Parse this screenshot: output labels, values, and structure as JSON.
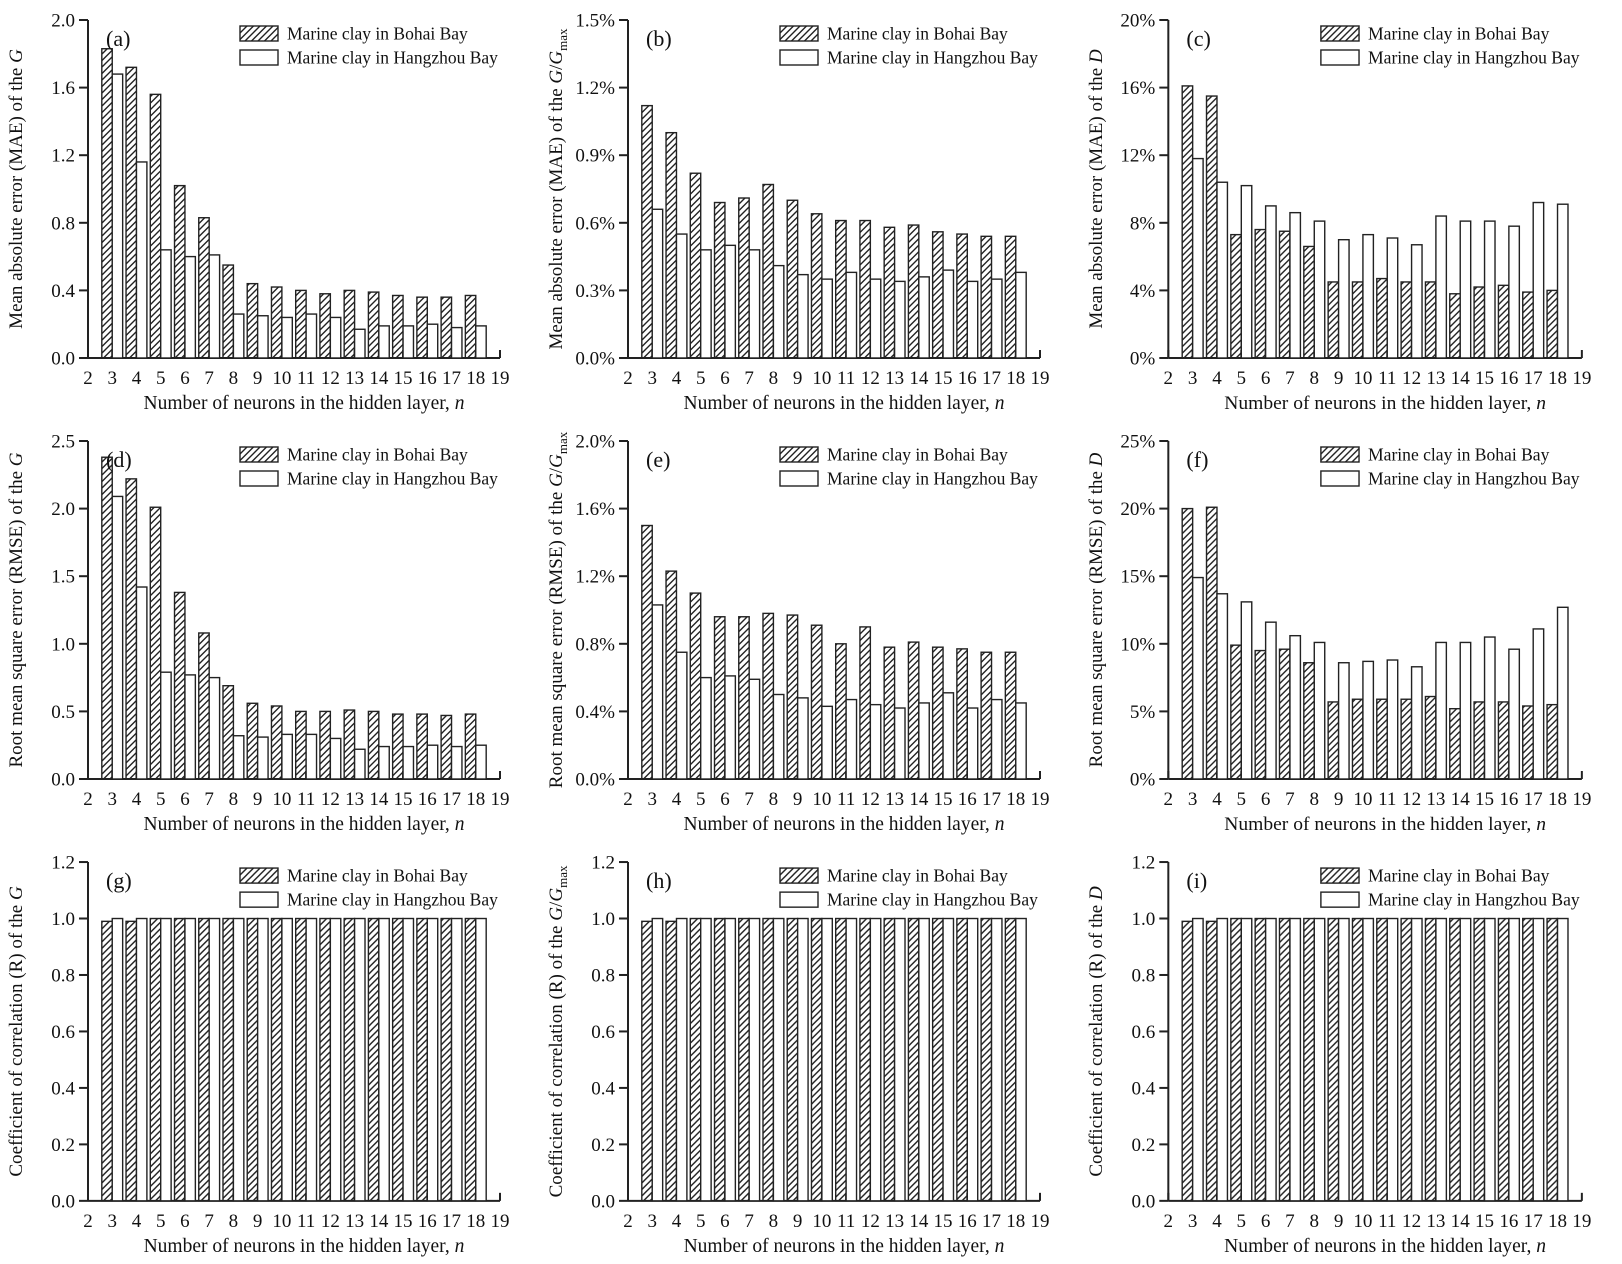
{
  "colors": {
    "ink": "#222222",
    "background": "#ffffff",
    "bar_fill": "#ffffff"
  },
  "legend": {
    "items": [
      {
        "label": "Marine clay in Bohai Bay",
        "swatch": "hatched"
      },
      {
        "label": "Marine clay in Hangzhou Bay",
        "swatch": "plain"
      }
    ]
  },
  "x": {
    "range": [
      2,
      19
    ],
    "ticks": [
      2,
      3,
      4,
      5,
      6,
      7,
      8,
      9,
      10,
      11,
      12,
      13,
      14,
      15,
      16,
      17,
      18,
      19
    ],
    "categories": [
      3,
      4,
      5,
      6,
      7,
      8,
      9,
      10,
      11,
      12,
      13,
      14,
      15,
      16,
      17,
      18
    ],
    "label": [
      {
        "t": "Number of neurons in the hidden layer, "
      },
      {
        "t": "n",
        "i": 1
      }
    ]
  },
  "chart_data": [
    {
      "type": "bar",
      "panel": "(a)",
      "ylabel": [
        {
          "t": "Mean absolute error (MAE) of the "
        },
        {
          "t": "G",
          "i": 1
        }
      ],
      "ymax": 2.0,
      "yticks": [
        {
          "v": 0,
          "l": "0.0"
        },
        {
          "v": 0.4,
          "l": "0.4"
        },
        {
          "v": 0.8,
          "l": "0.8"
        },
        {
          "v": 1.2,
          "l": "1.2"
        },
        {
          "v": 1.6,
          "l": "1.6"
        },
        {
          "v": 2.0,
          "l": "2.0"
        }
      ],
      "series": [
        {
          "name": "Marine clay in Bohai Bay",
          "values": [
            1.83,
            1.72,
            1.56,
            1.02,
            0.83,
            0.55,
            0.44,
            0.42,
            0.4,
            0.38,
            0.4,
            0.39,
            0.37,
            0.36,
            0.36,
            0.37
          ]
        },
        {
          "name": "Marine clay in Hangzhou Bay",
          "values": [
            1.68,
            1.16,
            0.64,
            0.6,
            0.61,
            0.26,
            0.25,
            0.24,
            0.26,
            0.24,
            0.17,
            0.19,
            0.19,
            0.2,
            0.18,
            0.19
          ]
        }
      ]
    },
    {
      "type": "bar",
      "panel": "(b)",
      "ylabel": [
        {
          "t": "Mean absolute error (MAE) of the "
        },
        {
          "t": "G",
          "i": 1
        },
        {
          "t": "/"
        },
        {
          "t": "G",
          "i": 1
        },
        {
          "t": "max",
          "sub": 1
        }
      ],
      "ymax": 1.5,
      "yticks": [
        {
          "v": 0,
          "l": "0.0%"
        },
        {
          "v": 0.3,
          "l": "0.3%"
        },
        {
          "v": 0.6,
          "l": "0.6%"
        },
        {
          "v": 0.9,
          "l": "0.9%"
        },
        {
          "v": 1.2,
          "l": "1.2%"
        },
        {
          "v": 1.5,
          "l": "1.5%"
        }
      ],
      "series": [
        {
          "name": "Marine clay in Bohai Bay",
          "values": [
            1.12,
            1.0,
            0.82,
            0.69,
            0.71,
            0.77,
            0.7,
            0.64,
            0.61,
            0.61,
            0.58,
            0.59,
            0.56,
            0.55,
            0.54,
            0.54
          ]
        },
        {
          "name": "Marine clay in Hangzhou Bay",
          "values": [
            0.66,
            0.55,
            0.48,
            0.5,
            0.48,
            0.41,
            0.37,
            0.35,
            0.38,
            0.35,
            0.34,
            0.36,
            0.39,
            0.34,
            0.35,
            0.38
          ]
        }
      ]
    },
    {
      "type": "bar",
      "panel": "(c)",
      "ylabel": [
        {
          "t": "Mean absolute error (MAE) of the "
        },
        {
          "t": "D",
          "i": 1
        }
      ],
      "ymax": 20,
      "yticks": [
        {
          "v": 0,
          "l": "0%"
        },
        {
          "v": 4,
          "l": "4%"
        },
        {
          "v": 8,
          "l": "8%"
        },
        {
          "v": 12,
          "l": "12%"
        },
        {
          "v": 16,
          "l": "16%"
        },
        {
          "v": 20,
          "l": "20%"
        }
      ],
      "series": [
        {
          "name": "Marine clay in Bohai Bay",
          "values": [
            16.1,
            15.5,
            7.3,
            7.6,
            7.5,
            6.6,
            4.5,
            4.5,
            4.7,
            4.5,
            4.5,
            3.8,
            4.2,
            4.3,
            3.9,
            4.0
          ]
        },
        {
          "name": "Marine clay in Hangzhou Bay",
          "values": [
            11.8,
            10.4,
            10.2,
            9.0,
            8.6,
            8.1,
            7.0,
            7.3,
            7.1,
            6.7,
            8.4,
            8.1,
            8.1,
            7.8,
            9.2,
            9.1
          ]
        }
      ]
    },
    {
      "type": "bar",
      "panel": "(d)",
      "ylabel": [
        {
          "t": "Root mean square error (RMSE) of the "
        },
        {
          "t": "G",
          "i": 1
        }
      ],
      "ymax": 2.5,
      "yticks": [
        {
          "v": 0,
          "l": "0.0"
        },
        {
          "v": 0.5,
          "l": "0.5"
        },
        {
          "v": 1.0,
          "l": "1.0"
        },
        {
          "v": 1.5,
          "l": "1.5"
        },
        {
          "v": 2.0,
          "l": "2.0"
        },
        {
          "v": 2.5,
          "l": "2.5"
        }
      ],
      "series": [
        {
          "name": "Marine clay in Bohai Bay",
          "values": [
            2.38,
            2.22,
            2.01,
            1.38,
            1.08,
            0.69,
            0.56,
            0.54,
            0.5,
            0.5,
            0.51,
            0.5,
            0.48,
            0.48,
            0.47,
            0.48
          ]
        },
        {
          "name": "Marine clay in Hangzhou Bay",
          "values": [
            2.09,
            1.42,
            0.79,
            0.77,
            0.75,
            0.32,
            0.31,
            0.33,
            0.33,
            0.3,
            0.22,
            0.24,
            0.24,
            0.25,
            0.24,
            0.25
          ]
        }
      ]
    },
    {
      "type": "bar",
      "panel": "(e)",
      "ylabel": [
        {
          "t": "Root mean square error (RMSE) of the "
        },
        {
          "t": "G",
          "i": 1
        },
        {
          "t": "/"
        },
        {
          "t": "G",
          "i": 1
        },
        {
          "t": "max",
          "sub": 1
        }
      ],
      "ymax": 2.0,
      "yticks": [
        {
          "v": 0,
          "l": "0.0%"
        },
        {
          "v": 0.4,
          "l": "0.4%"
        },
        {
          "v": 0.8,
          "l": "0.8%"
        },
        {
          "v": 1.2,
          "l": "1.2%"
        },
        {
          "v": 1.6,
          "l": "1.6%"
        },
        {
          "v": 2.0,
          "l": "2.0%"
        }
      ],
      "series": [
        {
          "name": "Marine clay in Bohai Bay",
          "values": [
            1.5,
            1.23,
            1.1,
            0.96,
            0.96,
            0.98,
            0.97,
            0.91,
            0.8,
            0.9,
            0.78,
            0.81,
            0.78,
            0.77,
            0.75,
            0.75
          ]
        },
        {
          "name": "Marine clay in Hangzhou Bay",
          "values": [
            1.03,
            0.75,
            0.6,
            0.61,
            0.59,
            0.5,
            0.48,
            0.43,
            0.47,
            0.44,
            0.42,
            0.45,
            0.51,
            0.42,
            0.47,
            0.45
          ]
        }
      ]
    },
    {
      "type": "bar",
      "panel": "(f)",
      "ylabel": [
        {
          "t": "Root mean square error (RMSE) of the "
        },
        {
          "t": "D",
          "i": 1
        }
      ],
      "ymax": 25,
      "yticks": [
        {
          "v": 0,
          "l": "0%"
        },
        {
          "v": 5,
          "l": "5%"
        },
        {
          "v": 10,
          "l": "10%"
        },
        {
          "v": 15,
          "l": "15%"
        },
        {
          "v": 20,
          "l": "20%"
        },
        {
          "v": 25,
          "l": "25%"
        }
      ],
      "series": [
        {
          "name": "Marine clay in Bohai Bay",
          "values": [
            20.0,
            20.1,
            9.9,
            9.5,
            9.6,
            8.6,
            5.7,
            5.9,
            5.9,
            5.9,
            6.1,
            5.2,
            5.7,
            5.7,
            5.4,
            5.5
          ]
        },
        {
          "name": "Marine clay in Hangzhou Bay",
          "values": [
            14.9,
            13.7,
            13.1,
            11.6,
            10.6,
            10.1,
            8.6,
            8.7,
            8.8,
            8.3,
            10.1,
            10.1,
            10.5,
            9.6,
            11.1,
            12.7
          ]
        }
      ]
    },
    {
      "type": "bar",
      "panel": "(g)",
      "ylabel": [
        {
          "t": "Coefficient of correlation (R)  of the "
        },
        {
          "t": "G",
          "i": 1
        }
      ],
      "ymax": 1.2,
      "yticks": [
        {
          "v": 0,
          "l": "0.0"
        },
        {
          "v": 0.2,
          "l": "0.2"
        },
        {
          "v": 0.4,
          "l": "0.4"
        },
        {
          "v": 0.6,
          "l": "0.6"
        },
        {
          "v": 0.8,
          "l": "0.8"
        },
        {
          "v": 1.0,
          "l": "1.0"
        },
        {
          "v": 1.2,
          "l": "1.2"
        }
      ],
      "series": [
        {
          "name": "Marine clay in Bohai Bay",
          "values": [
            0.99,
            0.99,
            1.0,
            1.0,
            1.0,
            1.0,
            1.0,
            1.0,
            1.0,
            1.0,
            1.0,
            1.0,
            1.0,
            1.0,
            1.0,
            1.0
          ]
        },
        {
          "name": "Marine clay in Hangzhou Bay",
          "values": [
            1.0,
            1.0,
            1.0,
            1.0,
            1.0,
            1.0,
            1.0,
            1.0,
            1.0,
            1.0,
            1.0,
            1.0,
            1.0,
            1.0,
            1.0,
            1.0
          ]
        }
      ]
    },
    {
      "type": "bar",
      "panel": "(h)",
      "ylabel": [
        {
          "t": "Coefficient of correlation (R)  of the "
        },
        {
          "t": "G",
          "i": 1
        },
        {
          "t": "/"
        },
        {
          "t": "G",
          "i": 1
        },
        {
          "t": "max",
          "sub": 1
        }
      ],
      "ymax": 1.2,
      "yticks": [
        {
          "v": 0,
          "l": "0.0"
        },
        {
          "v": 0.2,
          "l": "0.2"
        },
        {
          "v": 0.4,
          "l": "0.4"
        },
        {
          "v": 0.6,
          "l": "0.6"
        },
        {
          "v": 0.8,
          "l": "0.8"
        },
        {
          "v": 1.0,
          "l": "1.0"
        },
        {
          "v": 1.2,
          "l": "1.2"
        }
      ],
      "series": [
        {
          "name": "Marine clay in Bohai Bay",
          "values": [
            0.99,
            0.99,
            1.0,
            1.0,
            1.0,
            1.0,
            1.0,
            1.0,
            1.0,
            1.0,
            1.0,
            1.0,
            1.0,
            1.0,
            1.0,
            1.0
          ]
        },
        {
          "name": "Marine clay in Hangzhou Bay",
          "values": [
            1.0,
            1.0,
            1.0,
            1.0,
            1.0,
            1.0,
            1.0,
            1.0,
            1.0,
            1.0,
            1.0,
            1.0,
            1.0,
            1.0,
            1.0,
            1.0
          ]
        }
      ]
    },
    {
      "type": "bar",
      "panel": "(i)",
      "ylabel": [
        {
          "t": "Coefficient of correlation (R)  of the "
        },
        {
          "t": "D",
          "i": 1
        }
      ],
      "ymax": 1.2,
      "yticks": [
        {
          "v": 0,
          "l": "0.0"
        },
        {
          "v": 0.2,
          "l": "0.2"
        },
        {
          "v": 0.4,
          "l": "0.4"
        },
        {
          "v": 0.6,
          "l": "0.6"
        },
        {
          "v": 0.8,
          "l": "0.8"
        },
        {
          "v": 1.0,
          "l": "1.0"
        },
        {
          "v": 1.2,
          "l": "1.2"
        }
      ],
      "series": [
        {
          "name": "Marine clay in Bohai Bay",
          "values": [
            0.99,
            0.99,
            1.0,
            1.0,
            1.0,
            1.0,
            1.0,
            1.0,
            1.0,
            1.0,
            1.0,
            1.0,
            1.0,
            1.0,
            1.0,
            1.0
          ]
        },
        {
          "name": "Marine clay in Hangzhou Bay",
          "values": [
            1.0,
            1.0,
            1.0,
            1.0,
            1.0,
            1.0,
            1.0,
            1.0,
            1.0,
            1.0,
            1.0,
            1.0,
            1.0,
            1.0,
            1.0,
            1.0
          ]
        }
      ]
    }
  ]
}
